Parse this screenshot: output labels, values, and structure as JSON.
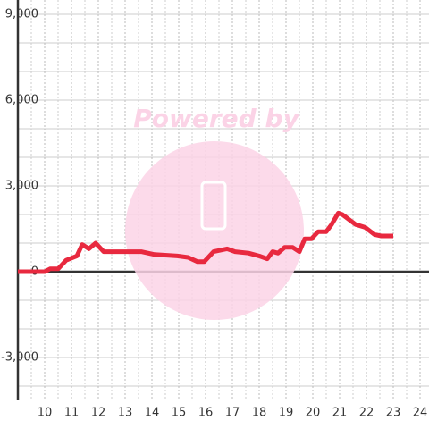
{
  "chart_data": {
    "type": "line",
    "watermark": "Powered by",
    "x": [
      9.0,
      10.0,
      10.2,
      10.5,
      10.8,
      11.2,
      11.4,
      11.65,
      11.9,
      12.2,
      12.8,
      13.2,
      13.6,
      14.1,
      14.95,
      15.35,
      15.7,
      15.95,
      16.3,
      16.8,
      17.1,
      17.6,
      18.0,
      18.3,
      18.5,
      18.7,
      18.95,
      19.25,
      19.5,
      19.7,
      19.95,
      20.2,
      20.5,
      20.7,
      20.95,
      21.1,
      21.6,
      21.95,
      22.3,
      22.55,
      23.0
    ],
    "series": [
      {
        "color": "#e8293f",
        "values": [
          0,
          0,
          100,
          100,
          400,
          550,
          950,
          800,
          1000,
          700,
          700,
          700,
          700,
          600,
          550,
          500,
          350,
          350,
          700,
          800,
          700,
          650,
          550,
          450,
          700,
          650,
          850,
          850,
          700,
          1150,
          1150,
          1400,
          1400,
          1650,
          2050,
          2000,
          1650,
          1550,
          1300,
          1250,
          1250
        ]
      }
    ],
    "xlim": [
      9,
      24.4
    ],
    "xticks": [
      10,
      11,
      12,
      13,
      14,
      15,
      16,
      17,
      18,
      19,
      20,
      21,
      22,
      23,
      24
    ],
    "xminor": [
      9.5,
      10.5,
      11.5,
      12.5,
      13.5,
      14.5,
      15.5,
      16.5,
      17.5,
      18.5,
      19.5,
      20.5,
      21.5,
      22.5,
      23.5
    ],
    "ylim": [
      -4500,
      9000
    ],
    "yticks": [
      {
        "value": -3000,
        "label": "-3,000"
      },
      0,
      {
        "value": 3000,
        "label": "3,000"
      },
      {
        "value": 6000,
        "label": "6,000"
      },
      {
        "value": 9000,
        "label": "9,000"
      }
    ],
    "yminor": [
      -4000,
      -2000,
      -1000,
      1000,
      2000,
      4000,
      5000,
      7000,
      8000
    ],
    "grid": true
  }
}
